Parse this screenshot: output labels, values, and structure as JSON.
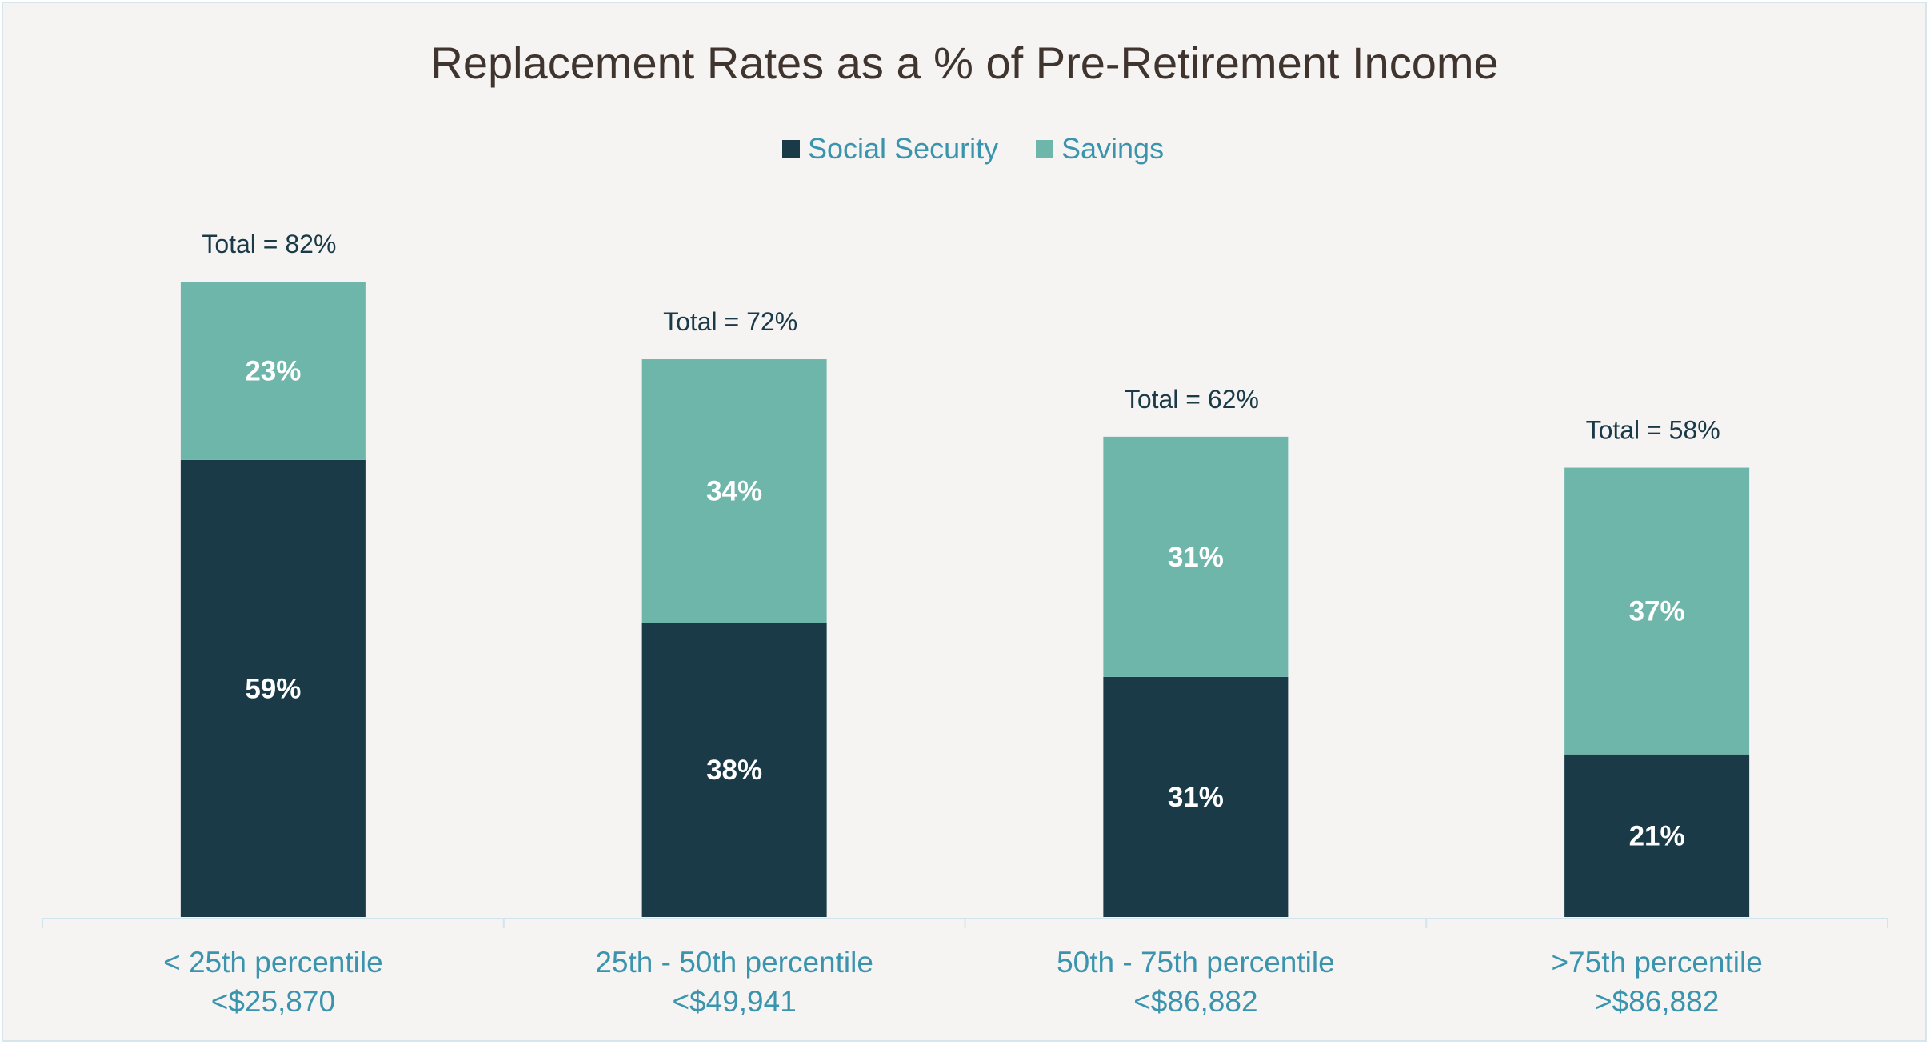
{
  "chart_data": {
    "type": "bar",
    "stacked": true,
    "title": "Replacement Rates as a % of Pre-Retirement Income",
    "categories": [
      [
        "< 25th percentile",
        "<$25,870"
      ],
      [
        "25th - 50th percentile",
        "<$49,941"
      ],
      [
        "50th - 75th percentile",
        "<$86,882"
      ],
      [
        ">75th percentile",
        ">$86,882"
      ]
    ],
    "series": [
      {
        "name": "Social Security",
        "values": [
          59,
          38,
          31,
          21
        ],
        "labels": [
          "59%",
          "38%",
          "31%",
          "21%"
        ],
        "color": "#1a3a48"
      },
      {
        "name": "Savings",
        "values": [
          23,
          34,
          31,
          37
        ],
        "labels": [
          "23%",
          "34%",
          "31%",
          "37%"
        ],
        "color": "#6fb6aa"
      }
    ],
    "totals": [
      "Total = 82%",
      "Total = 72%",
      "Total = 62%",
      "Total = 58%"
    ],
    "legend_position": "top",
    "grid": false,
    "ylim": [
      0,
      100
    ]
  },
  "colors": {
    "title": "#40342f",
    "legend_text": "#3a94ad",
    "axis_label": "#3a94ad",
    "total_text": "#1a3a48",
    "axis_line": "#d2e5ec",
    "background": "#f6f4f3"
  }
}
